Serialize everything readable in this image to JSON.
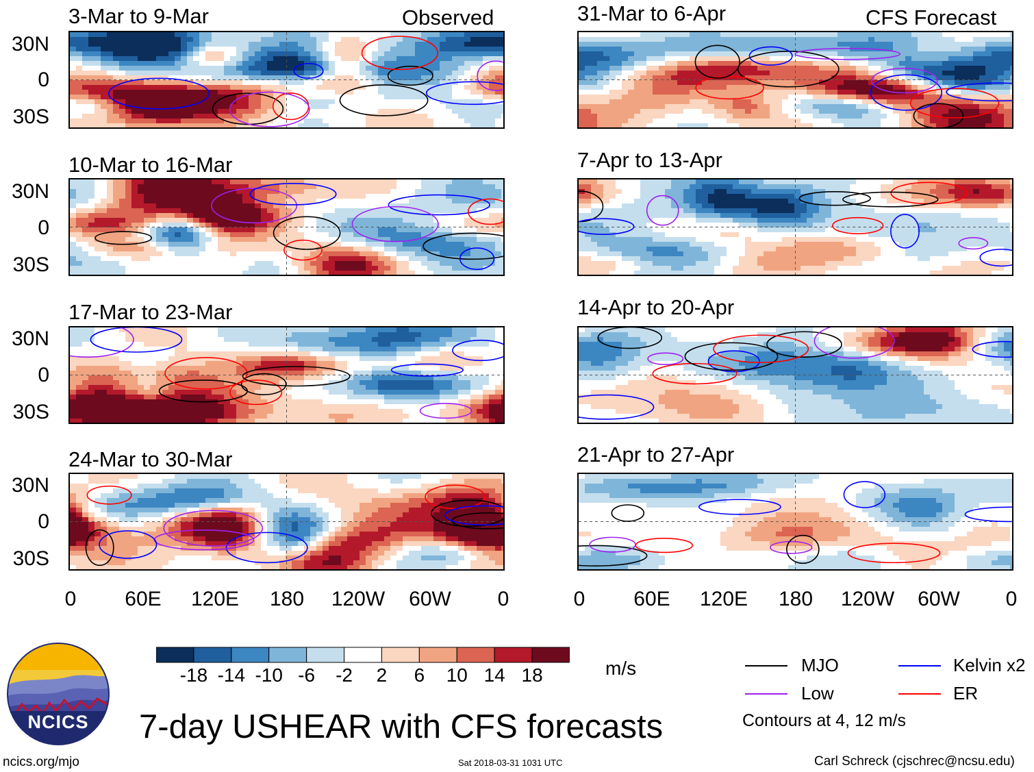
{
  "panels": {
    "left": [
      {
        "label": "3-Mar to 9-Mar",
        "tag": "Observed"
      },
      {
        "label": "10-Mar to 16-Mar",
        "tag": ""
      },
      {
        "label": "17-Mar to 23-Mar",
        "tag": ""
      },
      {
        "label": "24-Mar to 30-Mar",
        "tag": ""
      }
    ],
    "right": [
      {
        "label": "31-Mar to 6-Apr",
        "tag": "CFS Forecast"
      },
      {
        "label": "7-Apr to 13-Apr",
        "tag": ""
      },
      {
        "label": "14-Apr to 20-Apr",
        "tag": ""
      },
      {
        "label": "21-Apr to 27-Apr",
        "tag": ""
      }
    ]
  },
  "chart_data": {
    "type": "heatmap",
    "title": "7-day USHEAR with CFS forecasts",
    "variable": "USHEAR",
    "units": "m/s",
    "y_ticks": [
      "30N",
      "0",
      "30S"
    ],
    "x_ticks": [
      "0",
      "60E",
      "120E",
      "180",
      "120W",
      "60W",
      "0"
    ],
    "x_range": [
      0,
      360
    ],
    "y_range": [
      -40,
      40
    ],
    "colorbar": {
      "levels": [
        -18,
        -14,
        -10,
        -6,
        -2,
        2,
        6,
        10,
        14,
        18
      ],
      "labels": [
        "-18",
        "-14",
        "-10",
        "-6",
        "-2",
        "2",
        "6",
        "10",
        "14",
        "18"
      ],
      "colors": [
        "#0b2e5b",
        "#1f5f9e",
        "#3c86c2",
        "#7fb5d9",
        "#c4deee",
        "#ffffff",
        "#fbd6c1",
        "#f1a481",
        "#db6452",
        "#b3192b",
        "#6e0a1e"
      ]
    },
    "legend": [
      {
        "name": "MJO",
        "color": "#000000"
      },
      {
        "name": "Kelvin x2",
        "color": "#0000ff"
      },
      {
        "name": "Low",
        "color": "#a020f0"
      },
      {
        "name": "ER",
        "color": "#ff0000"
      }
    ],
    "contour_note": "Contours at 4, 12 m/s"
  },
  "footer": {
    "logo_text": "NCICS",
    "url": "ncics.org/mjo",
    "timestamp": "Sat 2018-03-31 1031 UTC",
    "credit": "Carl Schreck (cjschrec@ncsu.edu)"
  }
}
